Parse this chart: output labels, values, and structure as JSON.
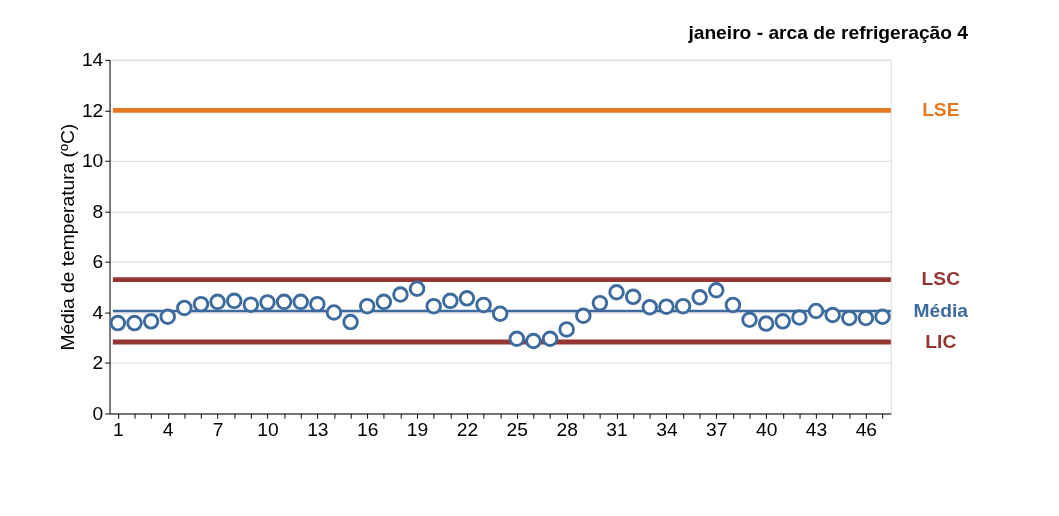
{
  "chart_data": {
    "type": "scatter",
    "title": "janeiro - arca de refrigeração 4",
    "ylabel": "Média de temperatura (ºC)",
    "categories": [
      "1",
      null,
      null,
      "4",
      null,
      null,
      "7",
      null,
      null,
      "10",
      null,
      null,
      "13",
      null,
      null,
      "16",
      null,
      null,
      "19",
      null,
      null,
      "22",
      null,
      null,
      "25",
      null,
      null,
      "28",
      null,
      null,
      "31",
      null,
      null,
      "34",
      null,
      null,
      "37",
      null,
      null,
      "40",
      null,
      null,
      "43",
      null,
      null,
      "46",
      null
    ],
    "series": [
      {
        "color": "#3d6b9e",
        "values": [
          3.58,
          3.58,
          3.65,
          3.83,
          4.18,
          4.33,
          4.42,
          4.46,
          4.31,
          4.4,
          4.42,
          4.42,
          4.33,
          4.0,
          3.62,
          4.25,
          4.42,
          4.71,
          4.94,
          4.25,
          4.46,
          4.56,
          4.3,
          3.95,
          2.96,
          2.87,
          2.96,
          3.33,
          3.87,
          4.37,
          4.8,
          4.62,
          4.21,
          4.23,
          4.25,
          4.6,
          4.88,
          4.3,
          3.71,
          3.56,
          3.65,
          3.8,
          4.06,
          3.9,
          3.78,
          3.78,
          3.83
        ]
      }
    ],
    "ylim": [
      0,
      14
    ],
    "yticks": [
      0,
      2,
      4,
      6,
      8,
      10,
      12,
      14
    ],
    "grid": "y",
    "marker": "circle",
    "ref_lines": [
      {
        "axis": "y",
        "value": 12,
        "label": "LSE",
        "color": "#e87722"
      },
      {
        "axis": "y",
        "value": 5.3,
        "label": "LSC",
        "color": "#943634"
      },
      {
        "axis": "y",
        "value": 4.06,
        "label": "Média",
        "color": "#3d6b9e"
      },
      {
        "axis": "y",
        "value": 2.83,
        "label": "LIC",
        "color": "#943634"
      }
    ]
  }
}
